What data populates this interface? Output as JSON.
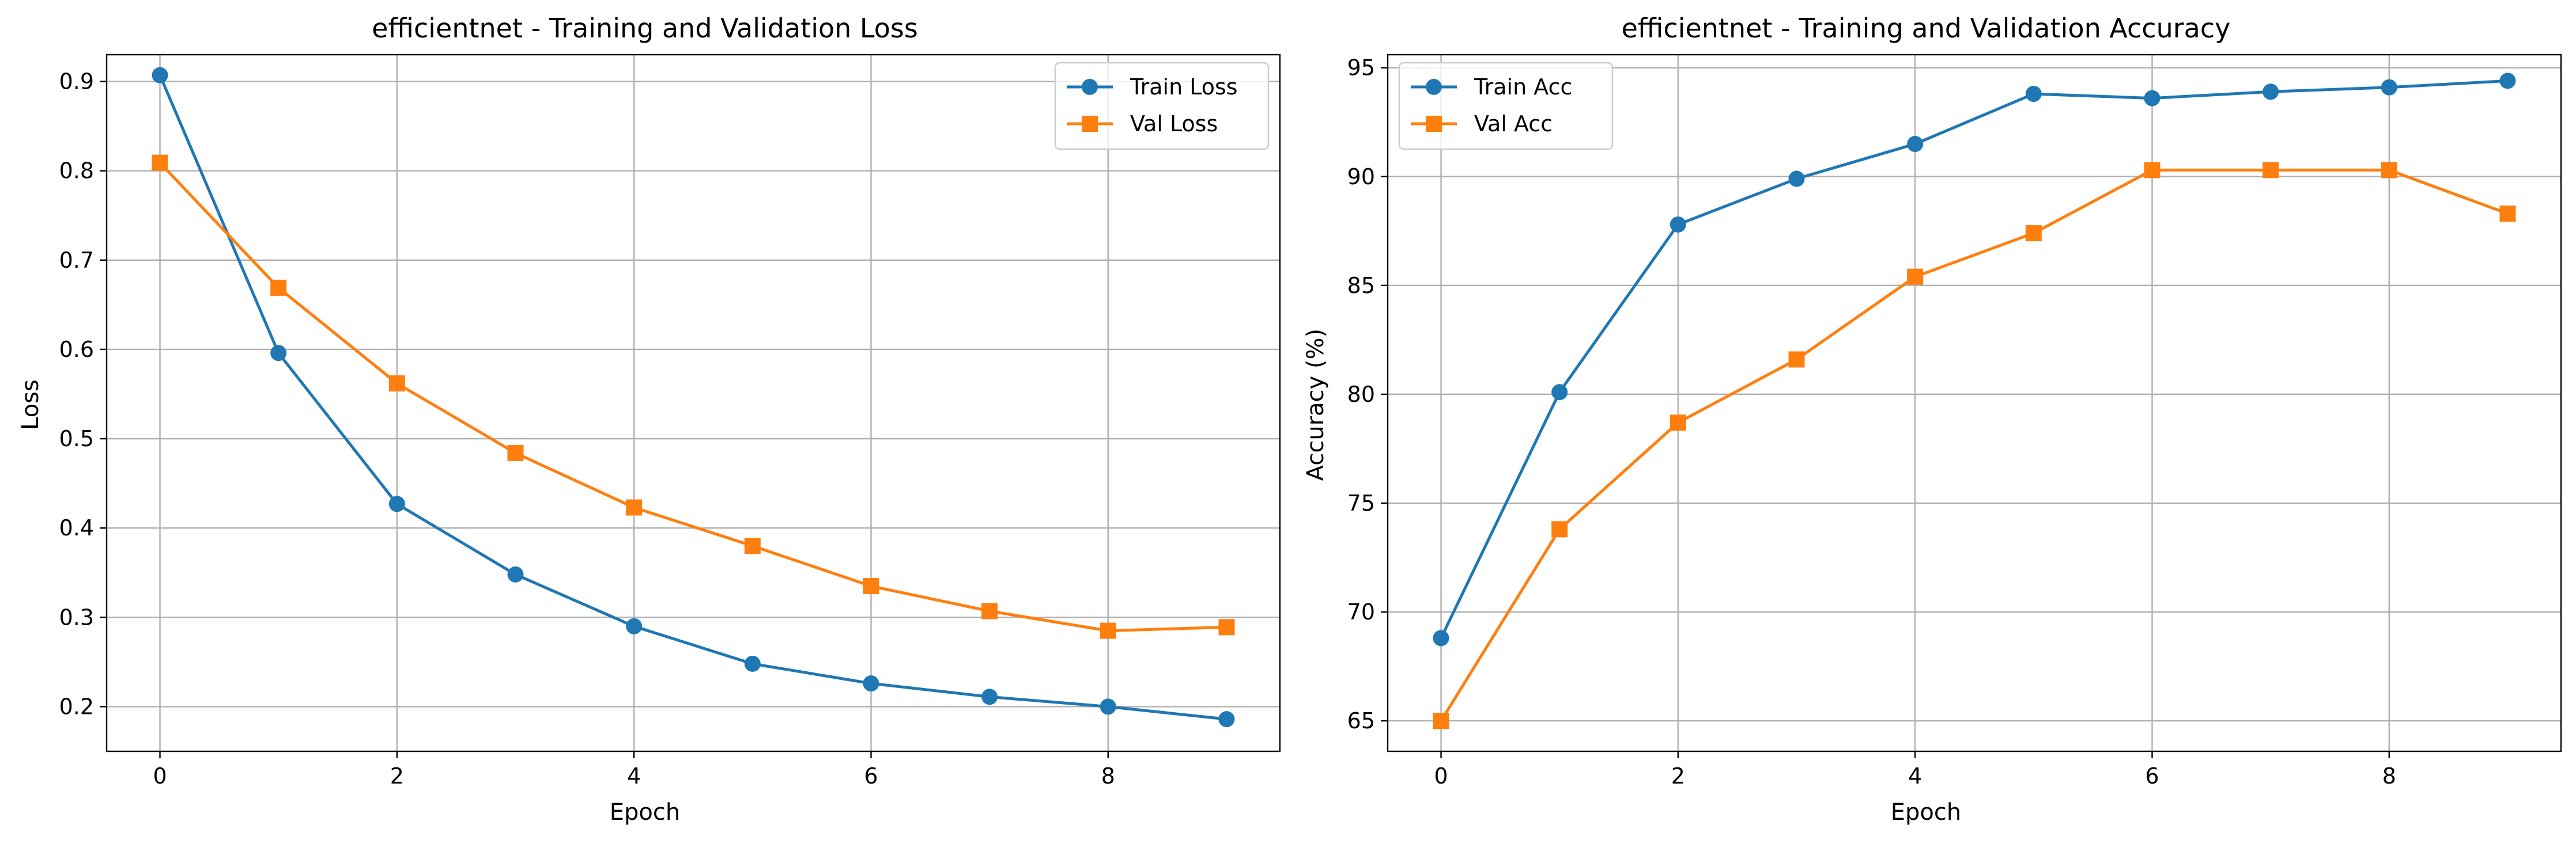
{
  "colors": {
    "train": "#1f77b4",
    "val": "#ff7f0e"
  },
  "chart_data": [
    {
      "type": "line",
      "title": "efficientnet - Training and Validation Loss",
      "xlabel": "Epoch",
      "ylabel": "Loss",
      "x": [
        0,
        1,
        2,
        3,
        4,
        5,
        6,
        7,
        8,
        9
      ],
      "xlim": [
        -0.45,
        9.45
      ],
      "ylim": [
        0.15,
        0.93
      ],
      "xticks": [
        0,
        2,
        4,
        6,
        8
      ],
      "yticks": [
        0.2,
        0.3,
        0.4,
        0.5,
        0.6,
        0.7,
        0.8,
        0.9
      ],
      "grid": true,
      "legend_position": "top-right",
      "series": [
        {
          "name": "Train Loss",
          "marker": "circle",
          "color": "#1f77b4",
          "values": [
            0.907,
            0.596,
            0.427,
            0.348,
            0.29,
            0.248,
            0.226,
            0.211,
            0.2,
            0.186
          ]
        },
        {
          "name": "Val Loss",
          "marker": "square",
          "color": "#ff7f0e",
          "values": [
            0.809,
            0.669,
            0.562,
            0.484,
            0.423,
            0.38,
            0.335,
            0.307,
            0.285,
            0.289
          ]
        }
      ]
    },
    {
      "type": "line",
      "title": "efficientnet - Training and Validation Accuracy",
      "xlabel": "Epoch",
      "ylabel": "Accuracy (%)",
      "x": [
        0,
        1,
        2,
        3,
        4,
        5,
        6,
        7,
        8,
        9
      ],
      "xlim": [
        -0.45,
        9.45
      ],
      "ylim": [
        63.6,
        95.6
      ],
      "xticks": [
        0,
        2,
        4,
        6,
        8
      ],
      "yticks": [
        65,
        70,
        75,
        80,
        85,
        90,
        95
      ],
      "grid": true,
      "legend_position": "top-left",
      "series": [
        {
          "name": "Train Acc",
          "marker": "circle",
          "color": "#1f77b4",
          "values": [
            68.8,
            80.1,
            87.8,
            89.9,
            91.5,
            93.8,
            93.6,
            93.9,
            94.1,
            94.4
          ]
        },
        {
          "name": "Val Acc",
          "marker": "square",
          "color": "#ff7f0e",
          "values": [
            65.0,
            73.8,
            78.7,
            81.6,
            85.4,
            87.4,
            90.3,
            90.3,
            90.3,
            88.3
          ]
        }
      ]
    }
  ]
}
